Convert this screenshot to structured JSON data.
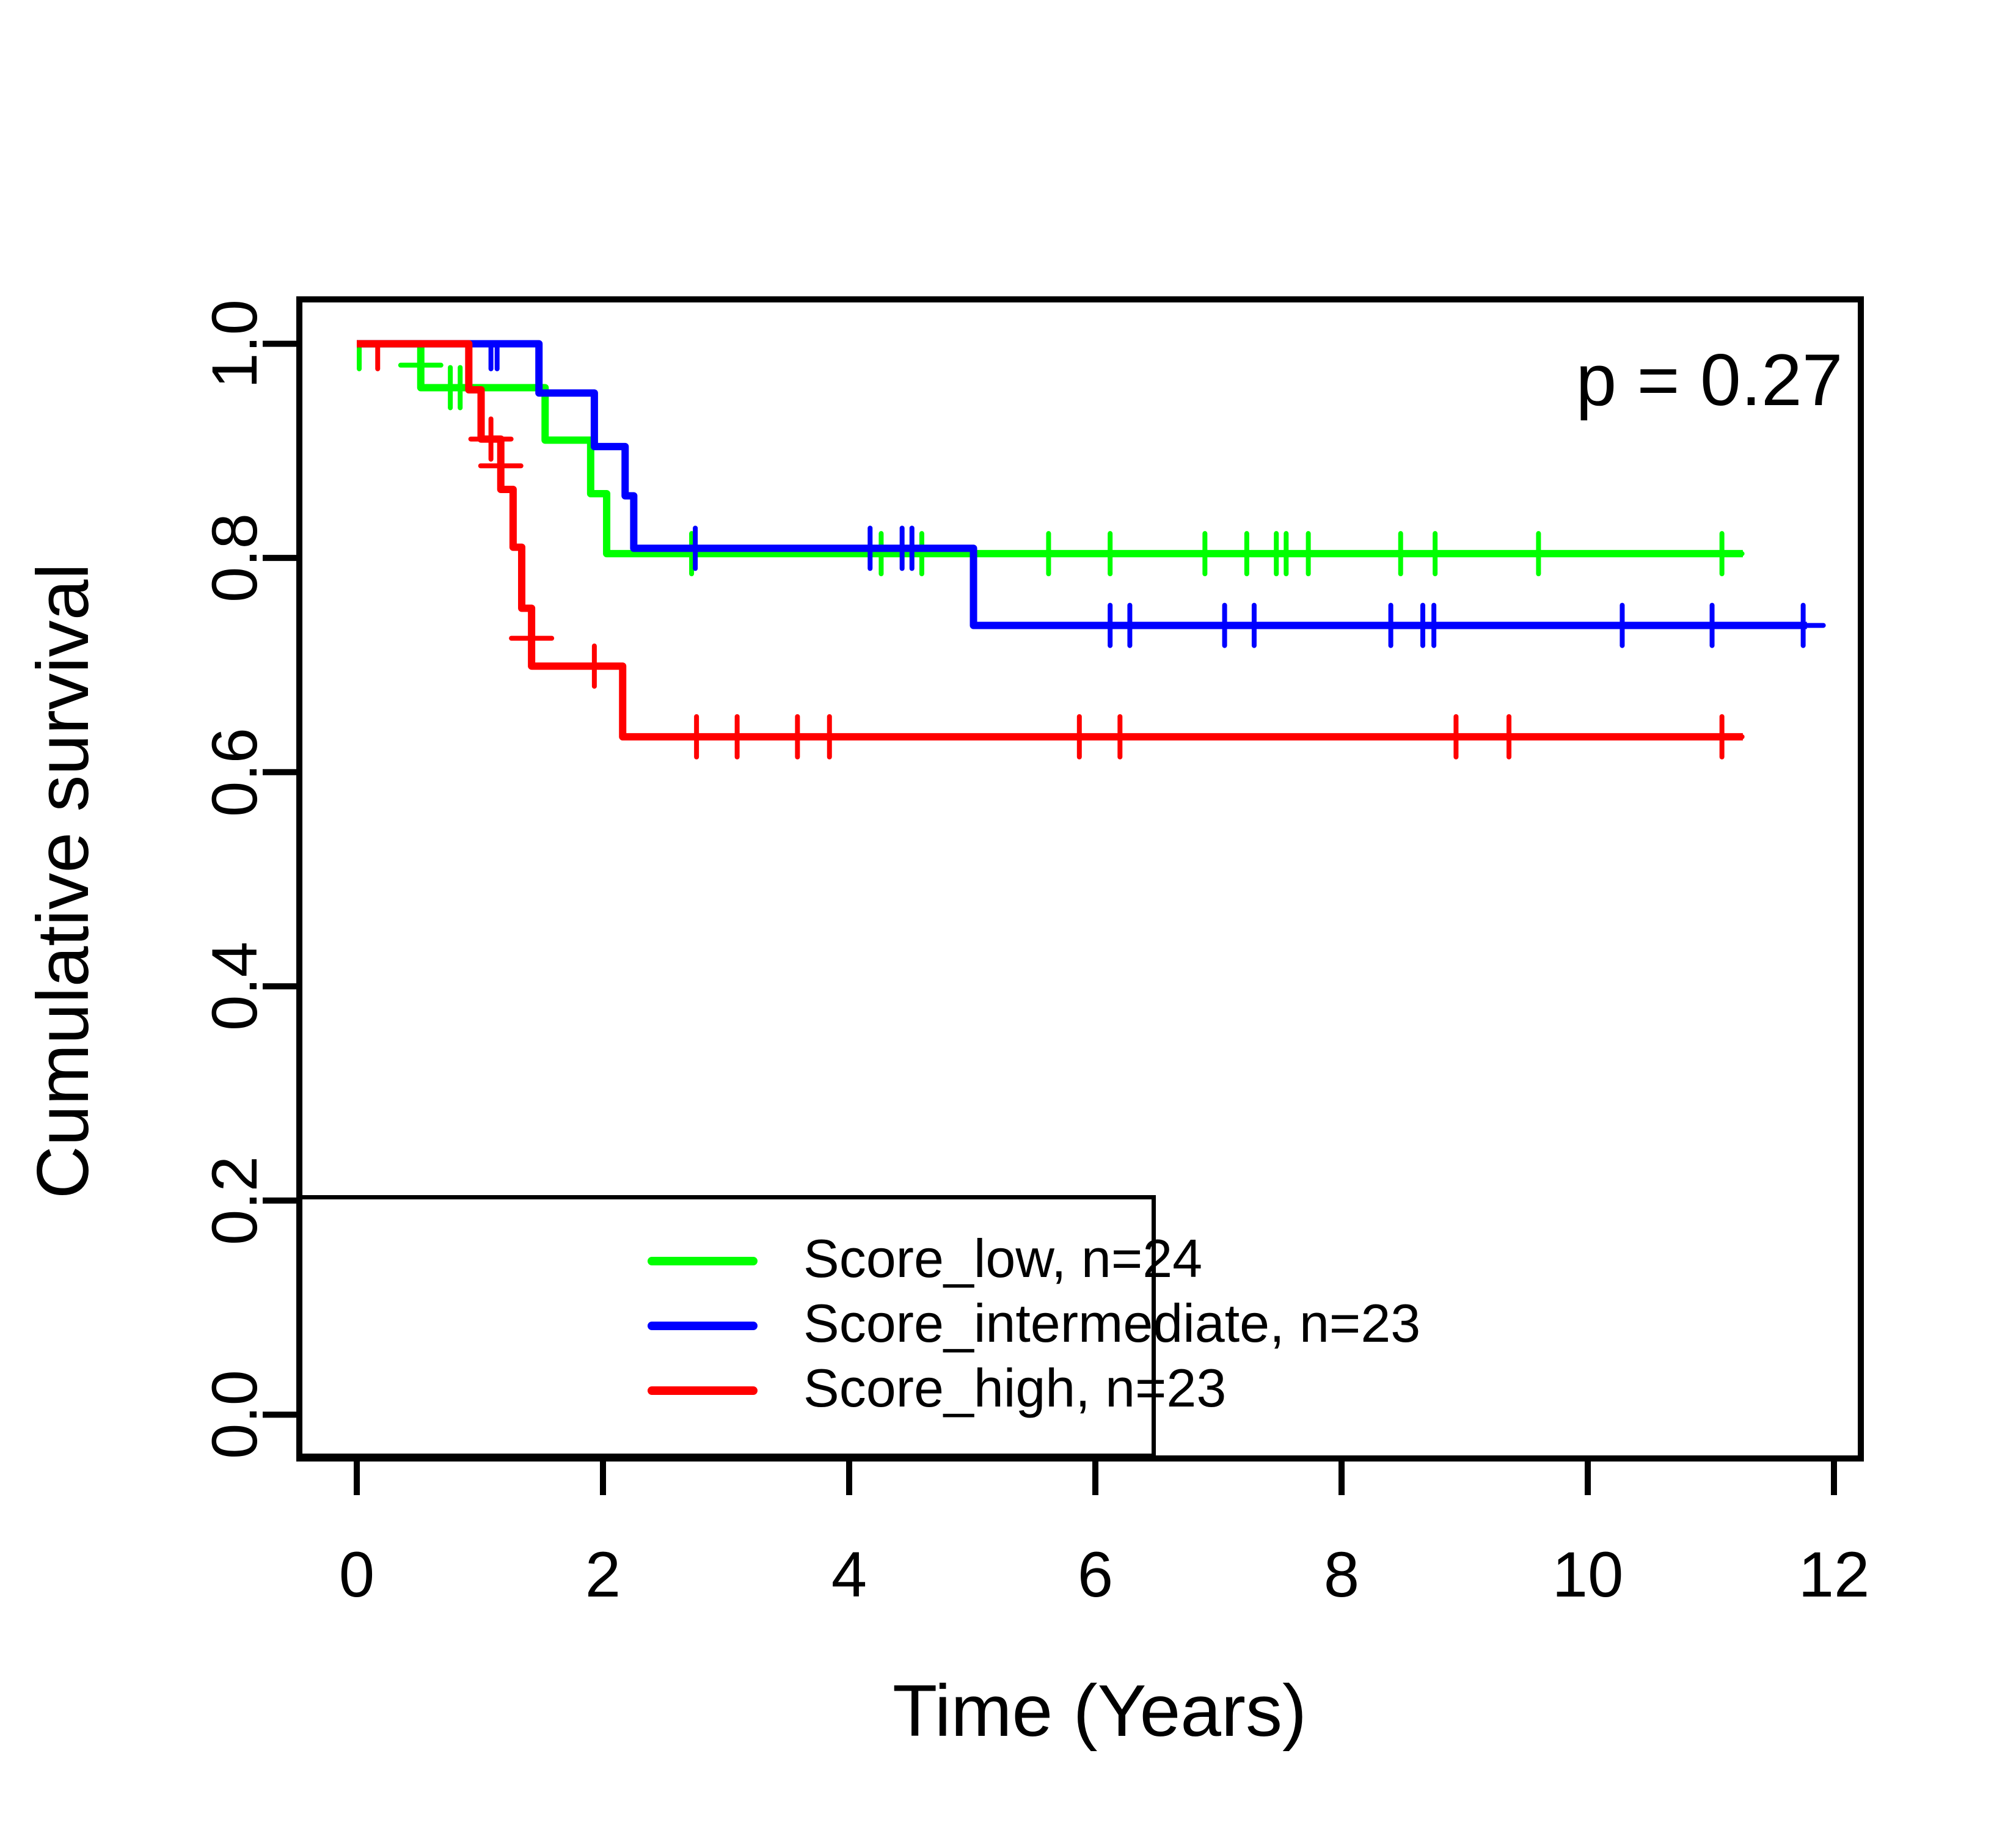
{
  "chart_data": {
    "type": "line",
    "subtype": "kaplan-meier-survival",
    "title": "",
    "xlabel": "Time (Years)",
    "ylabel": "Cumulative survival",
    "p_value_text": "p = 0.27",
    "xlim": [
      0,
      12
    ],
    "ylim": [
      0.0,
      1.0
    ],
    "grid": false,
    "legend_position": "bottom-left",
    "x_ticks": [
      0,
      2,
      4,
      6,
      8,
      10,
      12
    ],
    "x_tick_labels": [
      "0",
      "2",
      "4",
      "6",
      "8",
      "10",
      "12"
    ],
    "y_ticks": [
      0.0,
      0.2,
      0.4,
      0.6,
      0.8,
      1.0
    ],
    "y_tick_labels": [
      "0.0",
      "0.2",
      "0.4",
      "0.6",
      "0.8",
      "1.0"
    ],
    "axis_color": "#000000",
    "legend": {
      "entries": [
        {
          "label": "Score_low, n=24",
          "color": "#00ff00"
        },
        {
          "label": "Score_intermediate, n=23",
          "color": "#0000ff"
        },
        {
          "label": "Score_high, n=23",
          "color": "#ff0000"
        }
      ]
    },
    "series": [
      {
        "name": "score-low",
        "label": "Score_low, n=24",
        "n": 24,
        "color": "#00ff00",
        "start": [
          0,
          1.0
        ],
        "drops": [
          [
            0.52,
            0.959
          ],
          [
            1.53,
            0.91
          ],
          [
            1.9,
            0.86
          ],
          [
            2.03,
            0.804
          ]
        ],
        "end_time": 11.26,
        "censors": [
          [
            0.02,
            0.988,
            "tick"
          ],
          [
            0.52,
            0.98,
            "plus"
          ],
          [
            0.76,
            0.959,
            "plus"
          ],
          [
            0.84,
            0.959,
            "plus"
          ],
          [
            2.72,
            0.804,
            "plus"
          ],
          [
            4.26,
            0.804,
            "plus"
          ],
          [
            4.59,
            0.804,
            "plus"
          ],
          [
            5.62,
            0.804,
            "plus"
          ],
          [
            6.12,
            0.804,
            "plus"
          ],
          [
            6.89,
            0.804,
            "plus"
          ],
          [
            7.23,
            0.804,
            "plus"
          ],
          [
            7.47,
            0.804,
            "plus"
          ],
          [
            7.55,
            0.804,
            "plus"
          ],
          [
            7.73,
            0.804,
            "plus"
          ],
          [
            8.48,
            0.804,
            "plus"
          ],
          [
            8.76,
            0.804,
            "plus"
          ],
          [
            9.6,
            0.804,
            "plus"
          ],
          [
            11.09,
            0.804,
            "plus"
          ]
        ]
      },
      {
        "name": "score-intermediate",
        "label": "Score_intermediate, n=23",
        "n": 23,
        "color": "#0000ff",
        "start": [
          0,
          1.0
        ],
        "drops": [
          [
            1.48,
            0.954
          ],
          [
            1.93,
            0.904
          ],
          [
            2.18,
            0.858
          ],
          [
            2.25,
            0.809
          ],
          [
            5.01,
            0.737
          ]
        ],
        "end_time": 11.78,
        "censors": [
          [
            1.09,
            0.988,
            "tick"
          ],
          [
            1.14,
            0.988,
            "tick"
          ],
          [
            2.75,
            0.809,
            "plus"
          ],
          [
            4.17,
            0.809,
            "plus"
          ],
          [
            4.43,
            0.809,
            "plus"
          ],
          [
            4.51,
            0.809,
            "plus"
          ],
          [
            6.12,
            0.737,
            "plus"
          ],
          [
            6.28,
            0.737,
            "plus"
          ],
          [
            7.05,
            0.737,
            "plus"
          ],
          [
            7.29,
            0.737,
            "plus"
          ],
          [
            8.4,
            0.737,
            "plus"
          ],
          [
            8.66,
            0.737,
            "plus"
          ],
          [
            8.75,
            0.737,
            "plus"
          ],
          [
            10.28,
            0.737,
            "plus"
          ],
          [
            11.01,
            0.737,
            "plus"
          ],
          [
            11.75,
            0.737,
            "plus"
          ]
        ]
      },
      {
        "name": "score-high",
        "label": "Score_high, n=23",
        "n": 23,
        "color": "#ff0000",
        "start": [
          0,
          1.0
        ],
        "drops": [
          [
            0.91,
            0.957
          ],
          [
            1.01,
            0.911
          ],
          [
            1.17,
            0.864
          ],
          [
            1.27,
            0.81
          ],
          [
            1.34,
            0.753
          ],
          [
            1.42,
            0.699
          ],
          [
            2.16,
            0.633
          ]
        ],
        "end_time": 11.26,
        "censors": [
          [
            0.17,
            0.988,
            "tick"
          ],
          [
            1.09,
            0.911,
            "plus"
          ],
          [
            1.17,
            0.886,
            "plus"
          ],
          [
            1.42,
            0.725,
            "plus"
          ],
          [
            1.93,
            0.699,
            "plus"
          ],
          [
            2.76,
            0.633,
            "plus"
          ],
          [
            3.09,
            0.633,
            "plus"
          ],
          [
            3.58,
            0.633,
            "plus"
          ],
          [
            3.84,
            0.633,
            "plus"
          ],
          [
            5.87,
            0.633,
            "plus"
          ],
          [
            6.2,
            0.633,
            "plus"
          ],
          [
            8.93,
            0.633,
            "plus"
          ],
          [
            9.36,
            0.633,
            "plus"
          ],
          [
            11.09,
            0.633,
            "plus"
          ]
        ]
      }
    ]
  }
}
